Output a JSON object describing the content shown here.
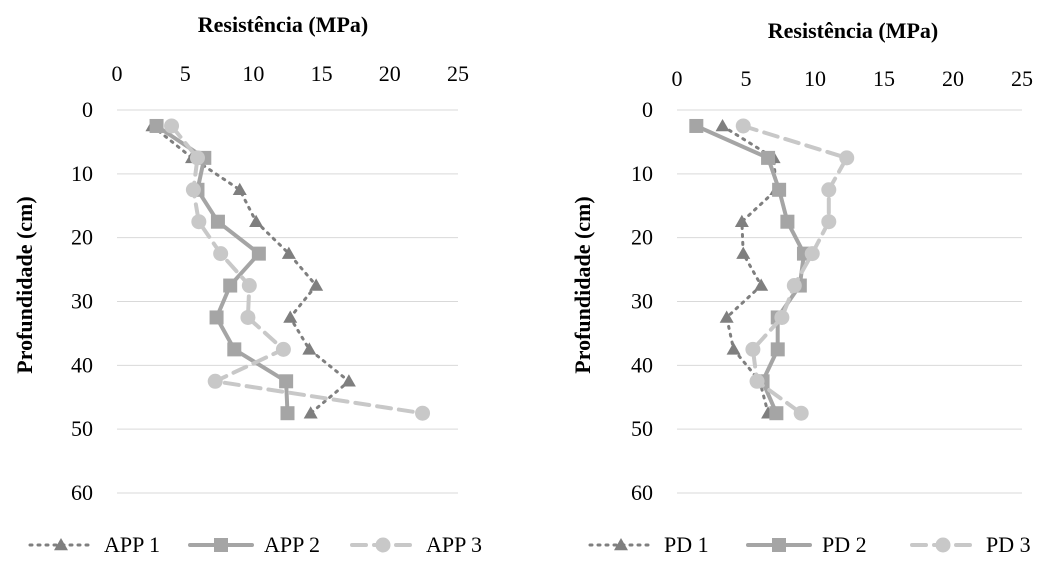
{
  "chart_data": [
    {
      "type": "line",
      "title": "Resistência (MPa)",
      "xlabel": "Resistência (MPa)",
      "ylabel": "Profundidade (cm)",
      "xlim": [
        0,
        25
      ],
      "ylim": [
        0,
        60
      ],
      "y_reversed": true,
      "x_position": "top",
      "xticks": [
        0,
        5,
        10,
        15,
        20,
        25
      ],
      "yticks": [
        0,
        10,
        20,
        30,
        40,
        50,
        60
      ],
      "grid": "horizontal",
      "legend_position": "bottom",
      "series": [
        {
          "name": "APP 1",
          "marker": "triangle",
          "dash": "dotted",
          "color": "#7f7f7f",
          "points": [
            [
              2.6,
              2.5
            ],
            [
              5.5,
              7.5
            ],
            [
              9.0,
              12.5
            ],
            [
              10.2,
              17.5
            ],
            [
              12.6,
              22.5
            ],
            [
              14.6,
              27.5
            ],
            [
              12.7,
              32.5
            ],
            [
              14.1,
              37.5
            ],
            [
              17.0,
              42.5
            ],
            [
              14.2,
              47.5
            ]
          ]
        },
        {
          "name": "APP 2",
          "marker": "square",
          "dash": "solid",
          "color": "#a5a5a5",
          "points": [
            [
              2.9,
              2.5
            ],
            [
              6.4,
              7.5
            ],
            [
              5.9,
              12.5
            ],
            [
              7.4,
              17.5
            ],
            [
              10.4,
              22.5
            ],
            [
              8.3,
              27.5
            ],
            [
              7.3,
              32.5
            ],
            [
              8.6,
              37.5
            ],
            [
              12.4,
              42.5
            ],
            [
              12.5,
              47.5
            ]
          ]
        },
        {
          "name": "APP 3",
          "marker": "circle",
          "dash": "dashed",
          "color": "#c8c8c8",
          "points": [
            [
              4.0,
              2.5
            ],
            [
              5.9,
              7.5
            ],
            [
              5.6,
              12.5
            ],
            [
              6.0,
              17.5
            ],
            [
              7.6,
              22.5
            ],
            [
              9.7,
              27.5
            ],
            [
              9.6,
              32.5
            ],
            [
              12.2,
              37.5
            ],
            [
              7.2,
              42.5
            ],
            [
              22.4,
              47.5
            ]
          ]
        }
      ]
    },
    {
      "type": "line",
      "title": "Resistência (MPa)",
      "xlabel": "Resistência (MPa)",
      "ylabel": "Profundidade (cm)",
      "xlim": [
        0,
        25
      ],
      "ylim": [
        0,
        60
      ],
      "y_reversed": true,
      "x_position": "top",
      "xticks": [
        0,
        5,
        10,
        15,
        20,
        25
      ],
      "yticks": [
        0,
        10,
        20,
        30,
        40,
        50,
        60
      ],
      "grid": "horizontal",
      "legend_position": "bottom",
      "series": [
        {
          "name": "PD 1",
          "marker": "triangle",
          "dash": "dotted",
          "color": "#7f7f7f",
          "points": [
            [
              3.3,
              2.5
            ],
            [
              7.0,
              7.5
            ],
            [
              7.2,
              12.5
            ],
            [
              4.7,
              17.5
            ],
            [
              4.8,
              22.5
            ],
            [
              6.1,
              27.5
            ],
            [
              3.6,
              32.5
            ],
            [
              4.1,
              37.5
            ],
            [
              6.0,
              42.5
            ],
            [
              6.6,
              47.5
            ]
          ]
        },
        {
          "name": "PD 2",
          "marker": "square",
          "dash": "solid",
          "color": "#a5a5a5",
          "points": [
            [
              1.4,
              2.5
            ],
            [
              6.6,
              7.5
            ],
            [
              7.4,
              12.5
            ],
            [
              8.0,
              17.5
            ],
            [
              9.2,
              22.5
            ],
            [
              8.9,
              27.5
            ],
            [
              7.3,
              32.5
            ],
            [
              7.3,
              37.5
            ],
            [
              6.2,
              42.5
            ],
            [
              7.2,
              47.5
            ]
          ]
        },
        {
          "name": "PD 3",
          "marker": "circle",
          "dash": "dashed",
          "color": "#c8c8c8",
          "points": [
            [
              4.8,
              2.5
            ],
            [
              12.3,
              7.5
            ],
            [
              11.0,
              12.5
            ],
            [
              11.0,
              17.5
            ],
            [
              9.8,
              22.5
            ],
            [
              8.5,
              27.5
            ],
            [
              7.6,
              32.5
            ],
            [
              5.5,
              37.5
            ],
            [
              5.8,
              42.5
            ],
            [
              9.0,
              47.5
            ]
          ]
        }
      ]
    }
  ]
}
